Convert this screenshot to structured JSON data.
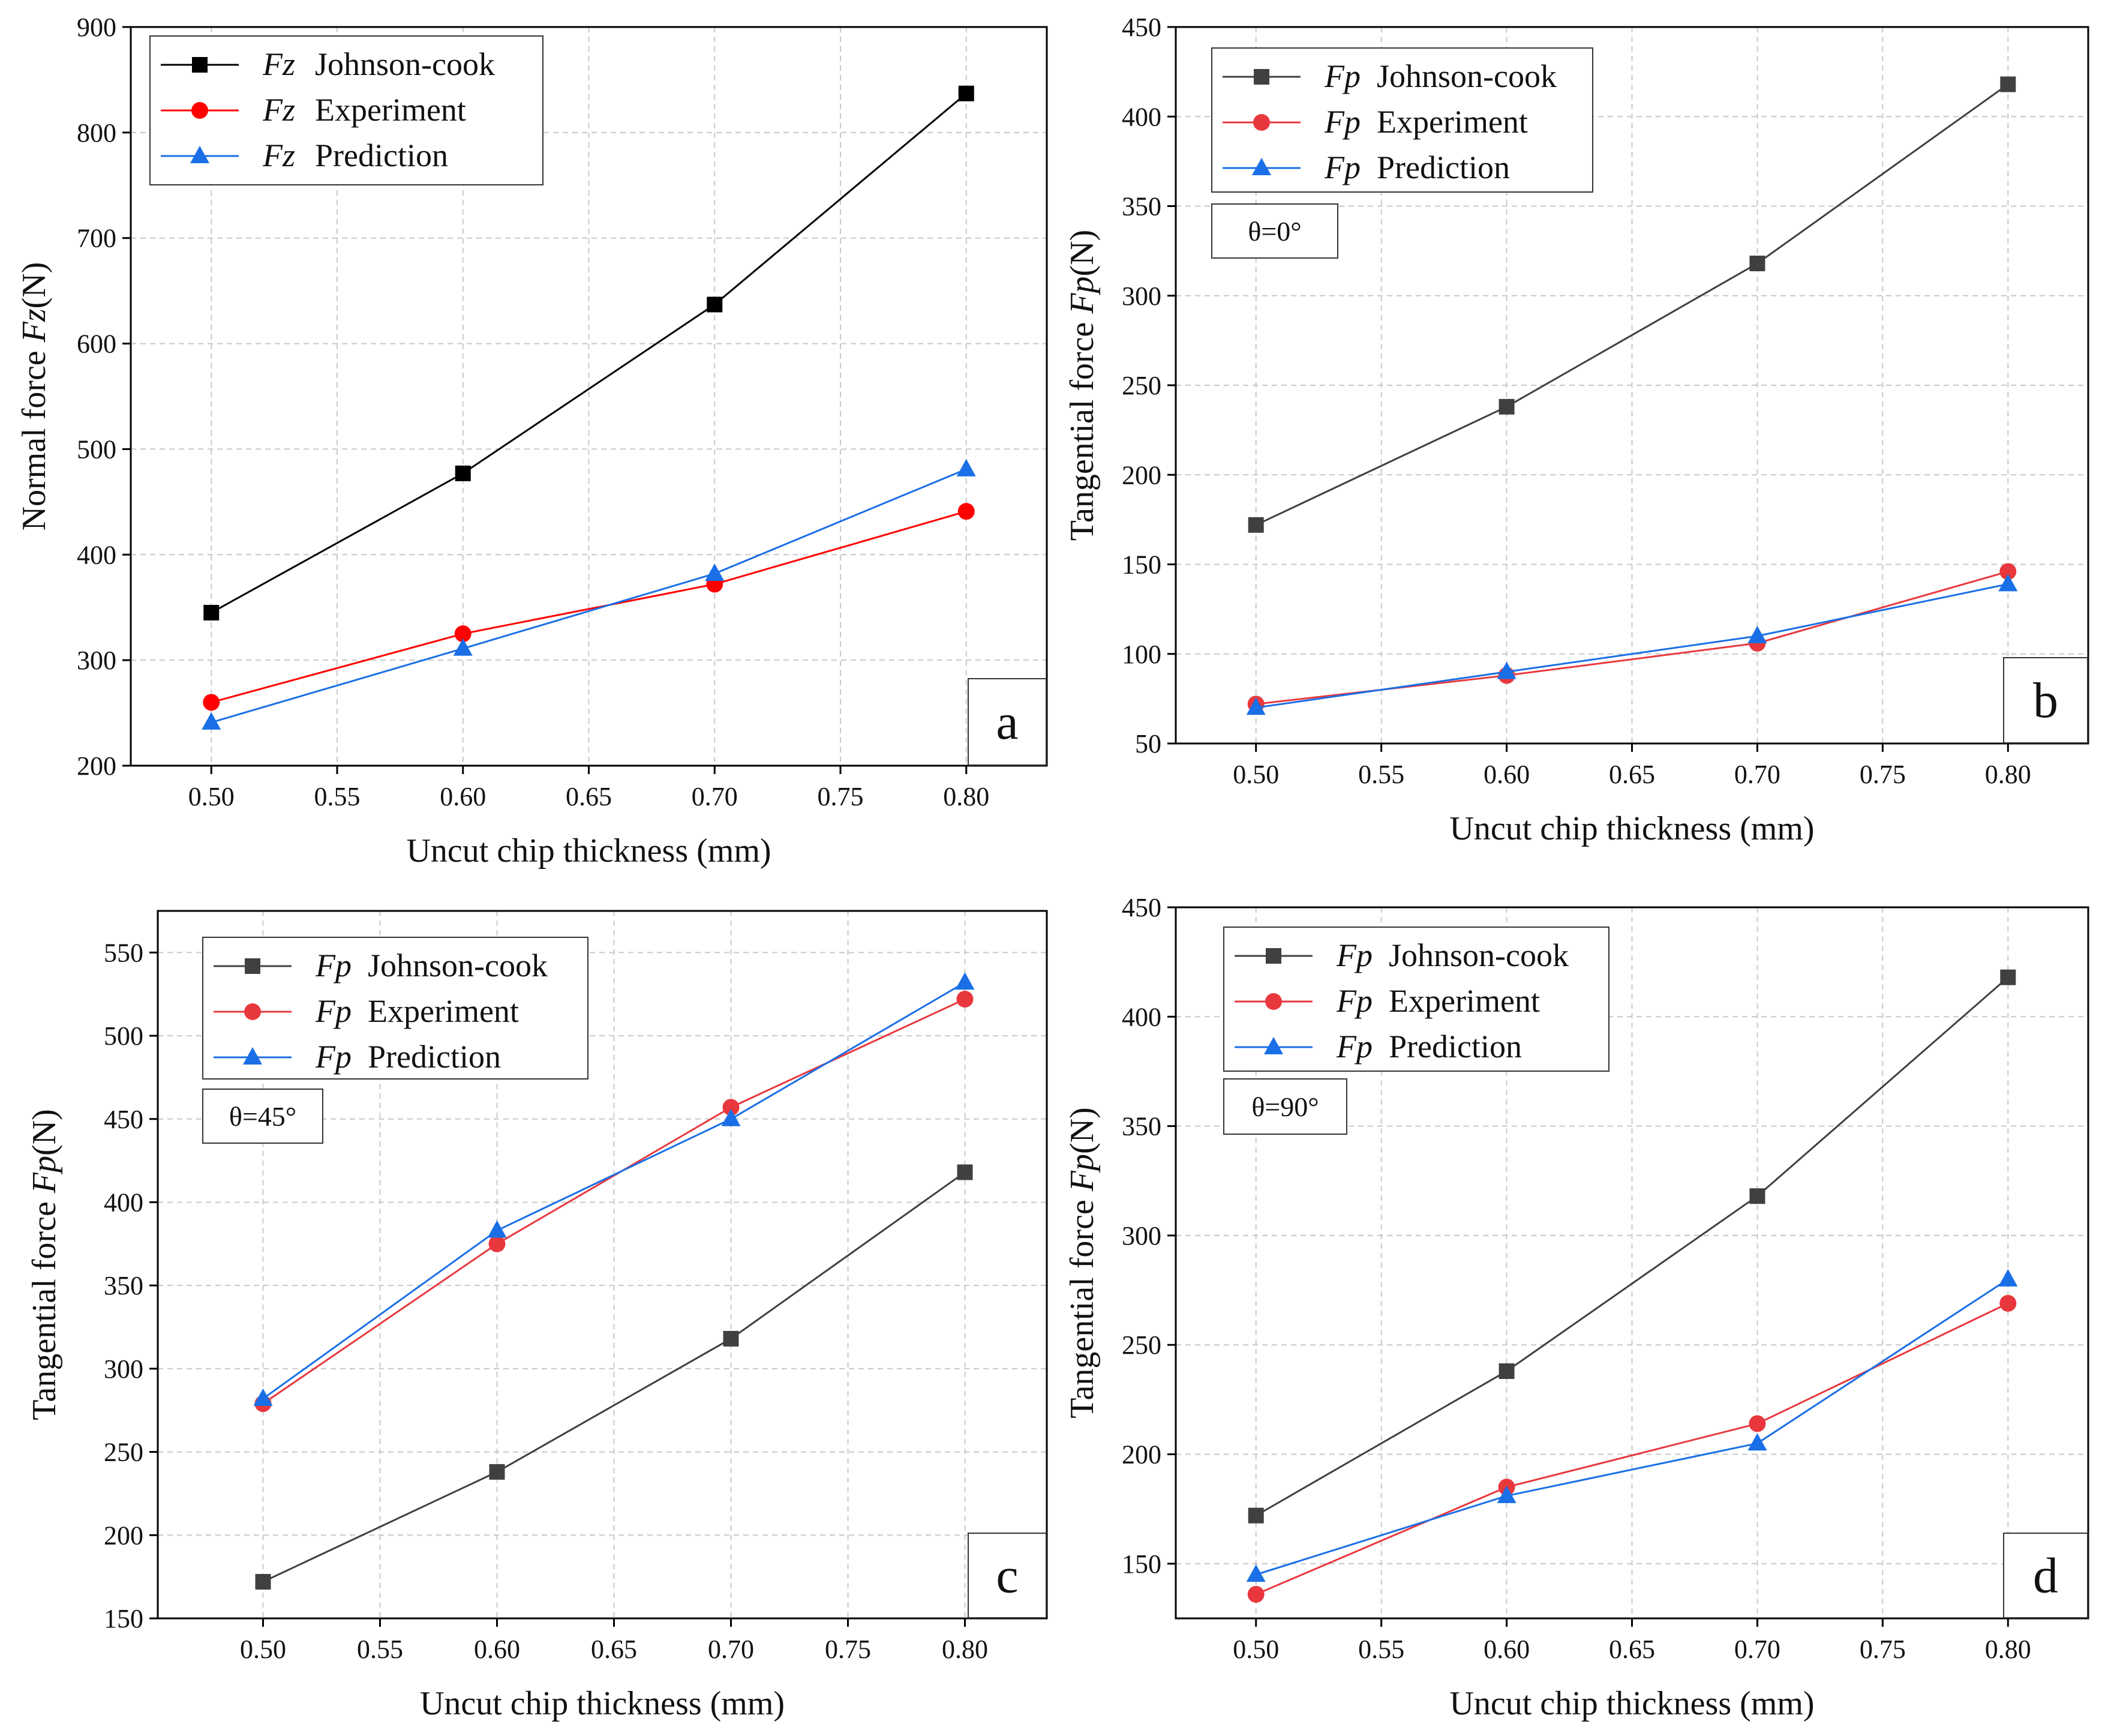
{
  "chart_data": [
    {
      "type": "line",
      "panel_label": "a",
      "xlabel": "Uncut chip thickness (mm)",
      "ylabel_prefix": "Normal force",
      "ylabel_symbol": "Fz",
      "ylabel_suffix": "(N)",
      "xlim": [
        0.468,
        0.832
      ],
      "ylim": [
        200,
        900
      ],
      "xticks": [
        0.5,
        0.55,
        0.6,
        0.65,
        0.7,
        0.75,
        0.8
      ],
      "xtick_labels": [
        "0.50",
        "0.55",
        "0.60",
        "0.65",
        "0.70",
        "0.75",
        "0.80"
      ],
      "yticks": [
        200,
        300,
        400,
        500,
        600,
        700,
        800,
        900
      ],
      "ytick_labels": [
        "200",
        "300",
        "400",
        "500",
        "600",
        "700",
        "800",
        "900"
      ],
      "annotation": null,
      "legend_position": "top-left",
      "x": [
        0.5,
        0.6,
        0.7,
        0.8
      ],
      "series": [
        {
          "symbol": "Fz",
          "name": "Johnson-cook",
          "color": "#000000",
          "marker": "square",
          "values": [
            345,
            477,
            637,
            837
          ]
        },
        {
          "symbol": "Fz",
          "name": "Experiment",
          "color": "#ff0000",
          "marker": "circle",
          "values": [
            260,
            325,
            372,
            441
          ]
        },
        {
          "symbol": "Fz",
          "name": "Prediction",
          "color": "#1a6fe6",
          "marker": "triangle",
          "values": [
            241,
            311,
            382,
            481
          ]
        }
      ]
    },
    {
      "type": "line",
      "panel_label": "b",
      "xlabel": "Uncut chip thickness (mm)",
      "ylabel_prefix": "Tangential force",
      "ylabel_symbol": "Fp",
      "ylabel_suffix": "(N)",
      "xlim": [
        0.468,
        0.832
      ],
      "ylim": [
        50,
        450
      ],
      "xticks": [
        0.5,
        0.55,
        0.6,
        0.65,
        0.7,
        0.75,
        0.8
      ],
      "xtick_labels": [
        "0.50",
        "0.55",
        "0.60",
        "0.65",
        "0.70",
        "0.75",
        "0.80"
      ],
      "yticks": [
        50,
        100,
        150,
        200,
        250,
        300,
        350,
        400,
        450
      ],
      "ytick_labels": [
        "50",
        "100",
        "150",
        "200",
        "250",
        "300",
        "350",
        "400",
        "450"
      ],
      "annotation": "θ=0°",
      "legend_position": "top-left",
      "x": [
        0.5,
        0.6,
        0.7,
        0.8
      ],
      "series": [
        {
          "symbol": "Fp",
          "name": "Johnson-cook",
          "color": "#404040",
          "marker": "square",
          "values": [
            172,
            238,
            318,
            418
          ]
        },
        {
          "symbol": "Fp",
          "name": "Experiment",
          "color": "#e8383d",
          "marker": "circle",
          "values": [
            72,
            88,
            106,
            146
          ]
        },
        {
          "symbol": "Fp",
          "name": "Prediction",
          "color": "#1a6fe6",
          "marker": "triangle",
          "values": [
            70,
            90,
            110,
            139
          ]
        }
      ]
    },
    {
      "type": "line",
      "panel_label": "c",
      "xlabel": "Uncut chip thickness (mm)",
      "ylabel_prefix": "Tangential force",
      "ylabel_symbol": "Fp",
      "ylabel_suffix": "(N)",
      "xlim": [
        0.455,
        0.835
      ],
      "ylim": [
        150,
        575
      ],
      "xticks": [
        0.5,
        0.55,
        0.6,
        0.65,
        0.7,
        0.75,
        0.8
      ],
      "xtick_labels": [
        "0.50",
        "0.55",
        "0.60",
        "0.65",
        "0.70",
        "0.75",
        "0.80"
      ],
      "yticks": [
        150,
        200,
        250,
        300,
        350,
        400,
        450,
        500,
        550
      ],
      "ytick_labels": [
        "150",
        "200",
        "250",
        "300",
        "350",
        "400",
        "450",
        "500",
        "550"
      ],
      "annotation": "θ=45°",
      "legend_position": "top-left",
      "x": [
        0.5,
        0.6,
        0.7,
        0.8
      ],
      "series": [
        {
          "symbol": "Fp",
          "name": "Johnson-cook",
          "color": "#404040",
          "marker": "square",
          "values": [
            172,
            238,
            318,
            418
          ]
        },
        {
          "symbol": "Fp",
          "name": "Experiment",
          "color": "#e8383d",
          "marker": "circle",
          "values": [
            279,
            375,
            457,
            522
          ]
        },
        {
          "symbol": "Fp",
          "name": "Prediction",
          "color": "#1a6fe6",
          "marker": "triangle",
          "values": [
            282,
            383,
            450,
            532
          ]
        }
      ]
    },
    {
      "type": "line",
      "panel_label": "d",
      "xlabel": "Uncut chip thickness (mm)",
      "ylabel_prefix": "Tangential force",
      "ylabel_symbol": "Fp",
      "ylabel_suffix": "(N)",
      "xlim": [
        0.468,
        0.832
      ],
      "ylim": [
        125,
        450
      ],
      "xticks": [
        0.5,
        0.55,
        0.6,
        0.65,
        0.7,
        0.75,
        0.8
      ],
      "xtick_labels": [
        "0.50",
        "0.55",
        "0.60",
        "0.65",
        "0.70",
        "0.75",
        "0.80"
      ],
      "yticks": [
        150,
        200,
        250,
        300,
        350,
        400,
        450
      ],
      "ytick_labels": [
        "150",
        "200",
        "250",
        "300",
        "350",
        "400",
        "450"
      ],
      "annotation": "θ=90°",
      "legend_position": "top-left",
      "x": [
        0.5,
        0.6,
        0.7,
        0.8
      ],
      "series": [
        {
          "symbol": "Fp",
          "name": "Johnson-cook",
          "color": "#404040",
          "marker": "square",
          "values": [
            172,
            238,
            318,
            418
          ]
        },
        {
          "symbol": "Fp",
          "name": "Experiment",
          "color": "#e8383d",
          "marker": "circle",
          "values": [
            136,
            185,
            214,
            269
          ]
        },
        {
          "symbol": "Fp",
          "name": "Prediction",
          "color": "#1a6fe6",
          "marker": "triangle",
          "values": [
            145,
            181,
            205,
            280
          ]
        }
      ]
    }
  ]
}
